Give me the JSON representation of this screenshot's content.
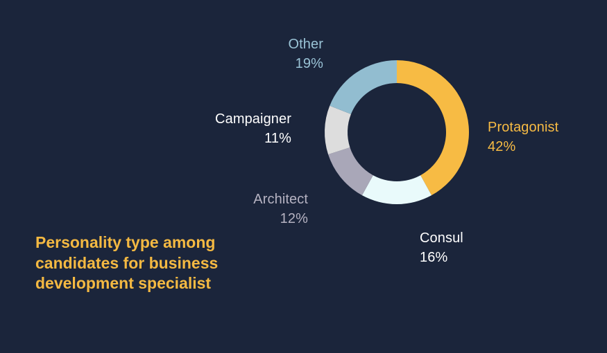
{
  "chart_data": {
    "type": "pie",
    "variant": "donut",
    "title": "Personality type among candidates for business development specialist",
    "slices": [
      {
        "name": "Protagonist",
        "value": 42,
        "label": "42%",
        "color": "#f7bb44"
      },
      {
        "name": "Consul",
        "value": 16,
        "label": "16%",
        "color": "#e9fafb"
      },
      {
        "name": "Architect",
        "value": 12,
        "label": "12%",
        "color": "#a9a7b8"
      },
      {
        "name": "Campaigner",
        "value": 11,
        "label": "11%",
        "color": "#dddddd"
      },
      {
        "name": "Other",
        "value": 19,
        "label": "19%",
        "color": "#92bdd0"
      }
    ],
    "legend": "none",
    "grid": false,
    "start_angle_deg": 0,
    "direction": "clockwise",
    "background_color": "#1b253b",
    "title_color": "#f4b942",
    "label_text_colors": {
      "Protagonist": "#f7bb44",
      "Consul": "#ffffff",
      "Architect": "#b6b3c2",
      "Campaigner": "#ffffff",
      "Other": "#9ac3d6"
    }
  }
}
